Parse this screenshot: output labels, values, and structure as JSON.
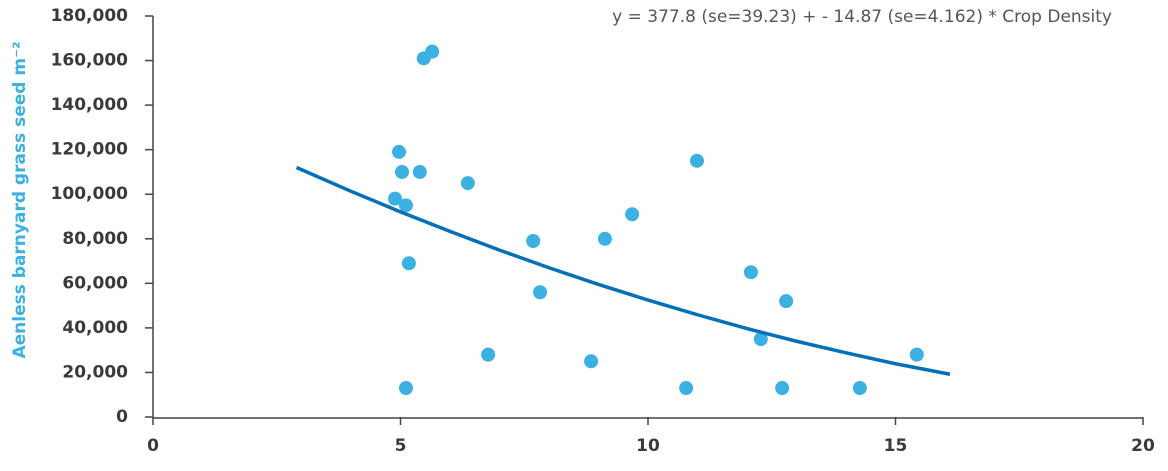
{
  "chart_data": {
    "type": "scatter",
    "annotation": "y = 377.8 (se=39.23) + - 14.87 (se=4.162) * Crop Density",
    "y_label": "Aenless barnyard grass seed m⁻²",
    "xlim": [
      0,
      20
    ],
    "xticks": [
      0,
      5,
      10,
      15,
      20
    ],
    "ylim": [
      0,
      180000
    ],
    "yticks": [
      0,
      {
        "value": 20000,
        "label": "20,000"
      },
      {
        "value": 40000,
        "label": "40,000"
      },
      {
        "value": 60000,
        "label": "60,000"
      },
      {
        "value": 80000,
        "label": "80,000"
      },
      {
        "value": 100000,
        "label": "100,000"
      },
      {
        "value": 120000,
        "label": "120,000"
      },
      {
        "value": 140000,
        "label": "140,000"
      },
      {
        "value": 160000,
        "label": "160,000"
      },
      {
        "value": 180000,
        "label": "180,000"
      }
    ],
    "series": [
      {
        "type": "scatter",
        "color": "#3bb0e3",
        "x": [
          5.47,
          5.64,
          4.97,
          5.03,
          5.39,
          4.89,
          5.11,
          5.17,
          5.11,
          6.36,
          6.77,
          7.68,
          7.82,
          8.85,
          9.13,
          9.68,
          10.77,
          10.99,
          12.08,
          12.28,
          12.71,
          12.79,
          14.28,
          15.43
        ],
        "values": [
          161000,
          164000,
          119000,
          110000,
          110000,
          98000,
          95000,
          69000,
          13000,
          105000,
          28000,
          79000,
          56000,
          25000,
          80000,
          91000,
          13000,
          115000,
          65000,
          35000,
          13000,
          52000,
          13000,
          28000
        ]
      },
      {
        "type": "line",
        "color": "#0070b8",
        "x": [
          2.9,
          4,
          5,
          6,
          7,
          8,
          9,
          10,
          11,
          12,
          13,
          14,
          15,
          16.1
        ],
        "values": [
          112000,
          101300,
          92100,
          83300,
          74900,
          67000,
          59500,
          52500,
          45900,
          39700,
          34000,
          28800,
          23900,
          19200
        ]
      }
    ]
  }
}
